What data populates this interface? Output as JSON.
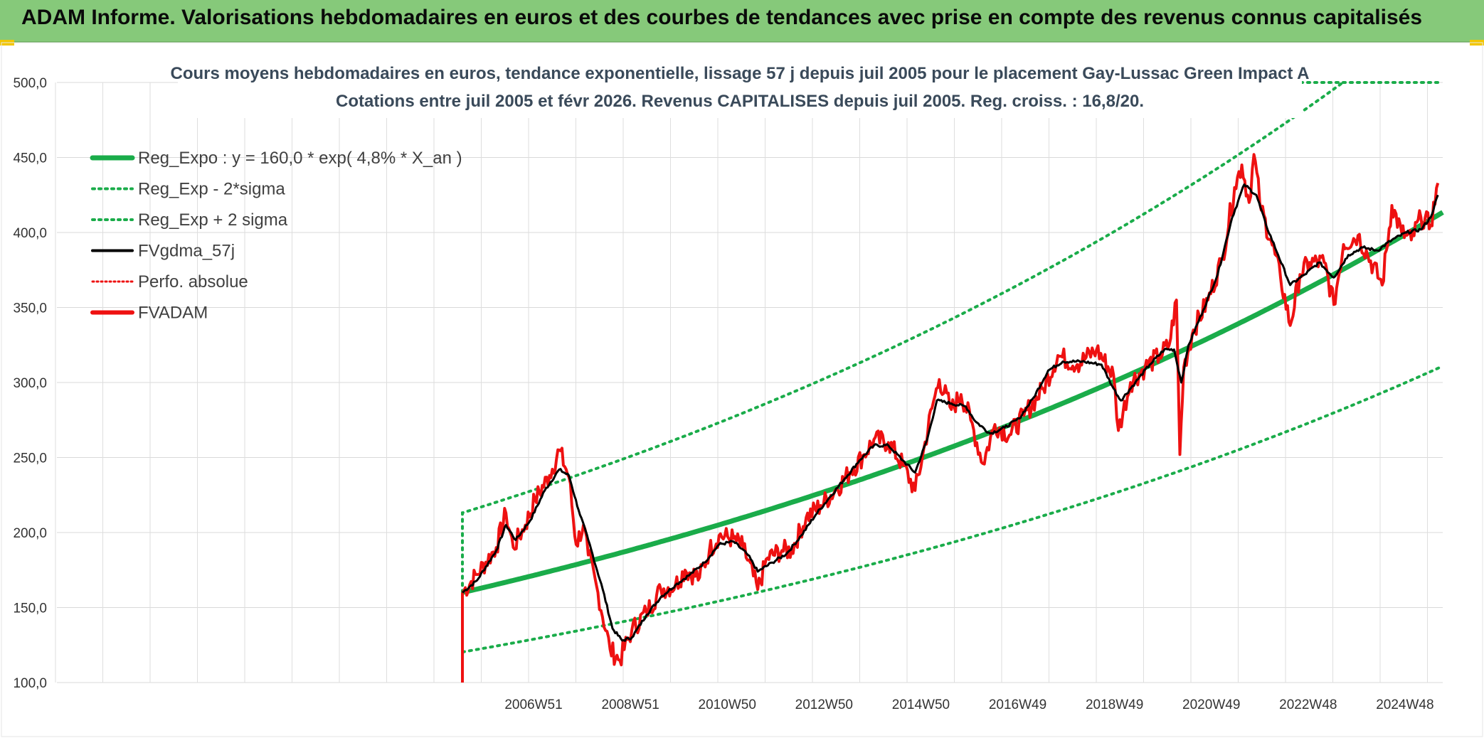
{
  "header": {
    "title": "ADAM Informe. Valorisations hebdomadaires en euros et des courbes de tendances avec prise en compte des revenus connus capitalisés"
  },
  "colors": {
    "header_bg": "#86c97a",
    "green": "#1aac4a",
    "red": "#ee1111",
    "black": "#000000",
    "grid": "#d9d9d9"
  },
  "chart_data": {
    "type": "line",
    "title_lines": [
      "Cours moyens hebdomadaires en euros, tendance exponentielle, lissage 57 j depuis juil 2005 pour le placement Gay-Lussac Green Impact A",
      "Cotations entre juil 2005 et févr 2026. Revenus CAPITALISES depuis juil 2005. Reg. croiss. : 16,8/20."
    ],
    "ylim": [
      100,
      500
    ],
    "yticks": [
      "500,0",
      "450,0",
      "400,0",
      "350,0",
      "300,0",
      "250,0",
      "200,0",
      "150,0",
      "100,0"
    ],
    "xticks": [
      "2006W51",
      "2008W51",
      "2010W50",
      "2012W50",
      "2014W50",
      "2016W49",
      "2018W49",
      "2020W49",
      "2022W48",
      "2024W48"
    ],
    "legend": [
      {
        "label": "Reg_Expo : y = 160,0 * exp( 4,8% *  X_an )",
        "style": "solid-green-thick"
      },
      {
        "label": "Reg_Exp - 2*sigma",
        "style": "dotted-green"
      },
      {
        "label": "Reg_Exp + 2 sigma",
        "style": "dotted-green"
      },
      {
        "label": "FVgdma_57j",
        "style": "solid-black"
      },
      {
        "label": "Perfo. absolue",
        "style": "dotted-red"
      },
      {
        "label": "FVADAM",
        "style": "solid-red-thick"
      }
    ],
    "series": [
      {
        "name": "FVADAM",
        "color": "#ee1111",
        "points": [
          [
            2005.5,
            160
          ],
          [
            2005.8,
            172
          ],
          [
            2006.2,
            190
          ],
          [
            2006.4,
            213
          ],
          [
            2006.55,
            190
          ],
          [
            2006.8,
            205
          ],
          [
            2007.0,
            222
          ],
          [
            2007.3,
            238
          ],
          [
            2007.5,
            255
          ],
          [
            2007.7,
            237
          ],
          [
            2007.85,
            192
          ],
          [
            2008.0,
            205
          ],
          [
            2008.1,
            185
          ],
          [
            2008.3,
            160
          ],
          [
            2008.55,
            122
          ],
          [
            2008.75,
            115
          ],
          [
            2009.0,
            135
          ],
          [
            2009.3,
            147
          ],
          [
            2009.6,
            162
          ],
          [
            2009.9,
            165
          ],
          [
            2010.1,
            175
          ],
          [
            2010.4,
            170
          ],
          [
            2010.6,
            188
          ],
          [
            2010.8,
            198
          ],
          [
            2011.1,
            196
          ],
          [
            2011.3,
            190
          ],
          [
            2011.6,
            162
          ],
          [
            2011.8,
            183
          ],
          [
            2012.1,
            188
          ],
          [
            2012.3,
            188
          ],
          [
            2012.6,
            210
          ],
          [
            2012.9,
            218
          ],
          [
            2013.2,
            228
          ],
          [
            2013.5,
            240
          ],
          [
            2013.8,
            252
          ],
          [
            2014.0,
            262
          ],
          [
            2014.3,
            260
          ],
          [
            2014.6,
            245
          ],
          [
            2014.85,
            228
          ],
          [
            2015.0,
            250
          ],
          [
            2015.2,
            283
          ],
          [
            2015.35,
            302
          ],
          [
            2015.6,
            282
          ],
          [
            2015.8,
            292
          ],
          [
            2016.0,
            275
          ],
          [
            2016.25,
            246
          ],
          [
            2016.5,
            272
          ],
          [
            2016.8,
            265
          ],
          [
            2017.1,
            278
          ],
          [
            2017.5,
            296
          ],
          [
            2017.8,
            318
          ],
          [
            2018.2,
            312
          ],
          [
            2018.6,
            322
          ],
          [
            2018.95,
            305
          ],
          [
            2019.05,
            268
          ],
          [
            2019.3,
            300
          ],
          [
            2019.6,
            310
          ],
          [
            2019.9,
            318
          ],
          [
            2020.1,
            325
          ],
          [
            2020.25,
            355
          ],
          [
            2020.32,
            252
          ],
          [
            2020.4,
            310
          ],
          [
            2020.6,
            335
          ],
          [
            2020.9,
            355
          ],
          [
            2021.2,
            383
          ],
          [
            2021.45,
            430
          ],
          [
            2021.6,
            445
          ],
          [
            2021.75,
            420
          ],
          [
            2021.85,
            452
          ],
          [
            2022.0,
            415
          ],
          [
            2022.2,
            395
          ],
          [
            2022.4,
            370
          ],
          [
            2022.6,
            338
          ],
          [
            2022.8,
            372
          ],
          [
            2023.0,
            380
          ],
          [
            2023.3,
            380
          ],
          [
            2023.5,
            352
          ],
          [
            2023.7,
            392
          ],
          [
            2024.0,
            398
          ],
          [
            2024.2,
            385
          ],
          [
            2024.5,
            365
          ],
          [
            2024.7,
            418
          ],
          [
            2024.9,
            400
          ],
          [
            2025.1,
            395
          ],
          [
            2025.3,
            410
          ],
          [
            2025.5,
            405
          ],
          [
            2025.65,
            433
          ]
        ]
      },
      {
        "name": "FVgdma_57j",
        "color": "#000000",
        "points": [
          [
            2005.5,
            160
          ],
          [
            2005.8,
            168
          ],
          [
            2006.2,
            188
          ],
          [
            2006.4,
            205
          ],
          [
            2006.6,
            195
          ],
          [
            2006.9,
            208
          ],
          [
            2007.2,
            228
          ],
          [
            2007.5,
            242
          ],
          [
            2007.7,
            238
          ],
          [
            2007.9,
            215
          ],
          [
            2008.1,
            195
          ],
          [
            2008.4,
            162
          ],
          [
            2008.6,
            136
          ],
          [
            2008.8,
            128
          ],
          [
            2009.0,
            130
          ],
          [
            2009.3,
            145
          ],
          [
            2009.6,
            157
          ],
          [
            2009.9,
            165
          ],
          [
            2010.2,
            172
          ],
          [
            2010.5,
            180
          ],
          [
            2010.8,
            192
          ],
          [
            2011.1,
            194
          ],
          [
            2011.4,
            185
          ],
          [
            2011.6,
            174
          ],
          [
            2011.9,
            180
          ],
          [
            2012.2,
            186
          ],
          [
            2012.5,
            198
          ],
          [
            2012.8,
            212
          ],
          [
            2013.1,
            224
          ],
          [
            2013.4,
            236
          ],
          [
            2013.7,
            248
          ],
          [
            2014.0,
            258
          ],
          [
            2014.3,
            258
          ],
          [
            2014.6,
            248
          ],
          [
            2014.85,
            240
          ],
          [
            2015.1,
            262
          ],
          [
            2015.3,
            288
          ],
          [
            2015.6,
            286
          ],
          [
            2015.9,
            284
          ],
          [
            2016.1,
            274
          ],
          [
            2016.4,
            266
          ],
          [
            2016.7,
            270
          ],
          [
            2017.0,
            276
          ],
          [
            2017.3,
            290
          ],
          [
            2017.6,
            308
          ],
          [
            2017.9,
            314
          ],
          [
            2018.3,
            314
          ],
          [
            2018.7,
            312
          ],
          [
            2018.95,
            296
          ],
          [
            2019.1,
            288
          ],
          [
            2019.4,
            300
          ],
          [
            2019.7,
            312
          ],
          [
            2020.0,
            322
          ],
          [
            2020.2,
            322
          ],
          [
            2020.35,
            300
          ],
          [
            2020.5,
            325
          ],
          [
            2020.8,
            348
          ],
          [
            2021.1,
            372
          ],
          [
            2021.4,
            410
          ],
          [
            2021.65,
            432
          ],
          [
            2021.9,
            425
          ],
          [
            2022.1,
            405
          ],
          [
            2022.35,
            385
          ],
          [
            2022.6,
            365
          ],
          [
            2022.9,
            372
          ],
          [
            2023.2,
            380
          ],
          [
            2023.5,
            370
          ],
          [
            2023.8,
            385
          ],
          [
            2024.1,
            390
          ],
          [
            2024.4,
            388
          ],
          [
            2024.7,
            395
          ],
          [
            2025.0,
            400
          ],
          [
            2025.3,
            402
          ],
          [
            2025.5,
            410
          ],
          [
            2025.65,
            425
          ]
        ]
      }
    ]
  }
}
